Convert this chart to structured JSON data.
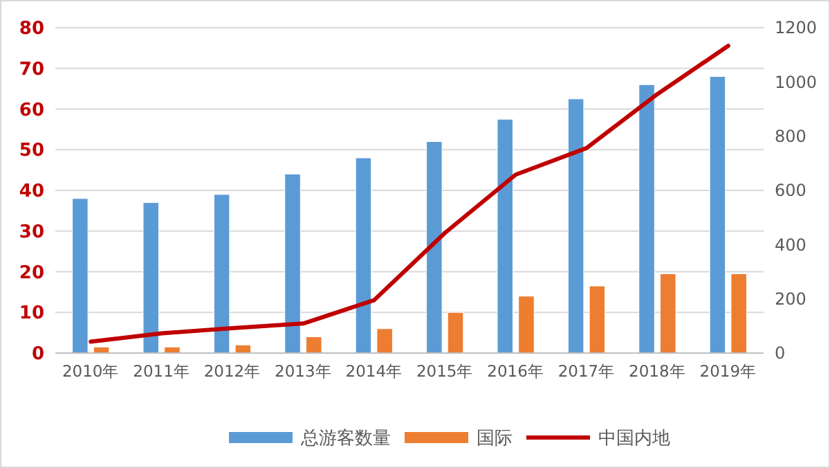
{
  "chart_data": {
    "type": "bar",
    "categories": [
      "2010年",
      "2011年",
      "2012年",
      "2013年",
      "2014年",
      "2015年",
      "2016年",
      "2017年",
      "2018年",
      "2019年"
    ],
    "series": [
      {
        "name": "总游客数量",
        "color": "#5b9bd5",
        "values": [
          38,
          37,
          39,
          44,
          48,
          52,
          57.5,
          62.5,
          66,
          68
        ]
      },
      {
        "name": "国际",
        "color": "#ed7d31",
        "values": [
          1.5,
          1.5,
          2,
          4,
          6,
          10,
          14,
          16.5,
          19.5,
          19.5
        ]
      },
      {
        "name": "中国内地",
        "type": "line",
        "axis": "y2",
        "color": "#c00000",
        "values": [
          42,
          73,
          92,
          109,
          195,
          443,
          658,
          756,
          955,
          1133
        ]
      }
    ],
    "ylim": [
      0,
      80
    ],
    "yticks": [
      0,
      10,
      20,
      30,
      40,
      50,
      60,
      70,
      80
    ],
    "y2lim": [
      0,
      1200
    ],
    "y2ticks": [
      0,
      200,
      400,
      600,
      800,
      1000,
      1200
    ],
    "grid": "y",
    "legend": "bottom",
    "marker": "none"
  }
}
